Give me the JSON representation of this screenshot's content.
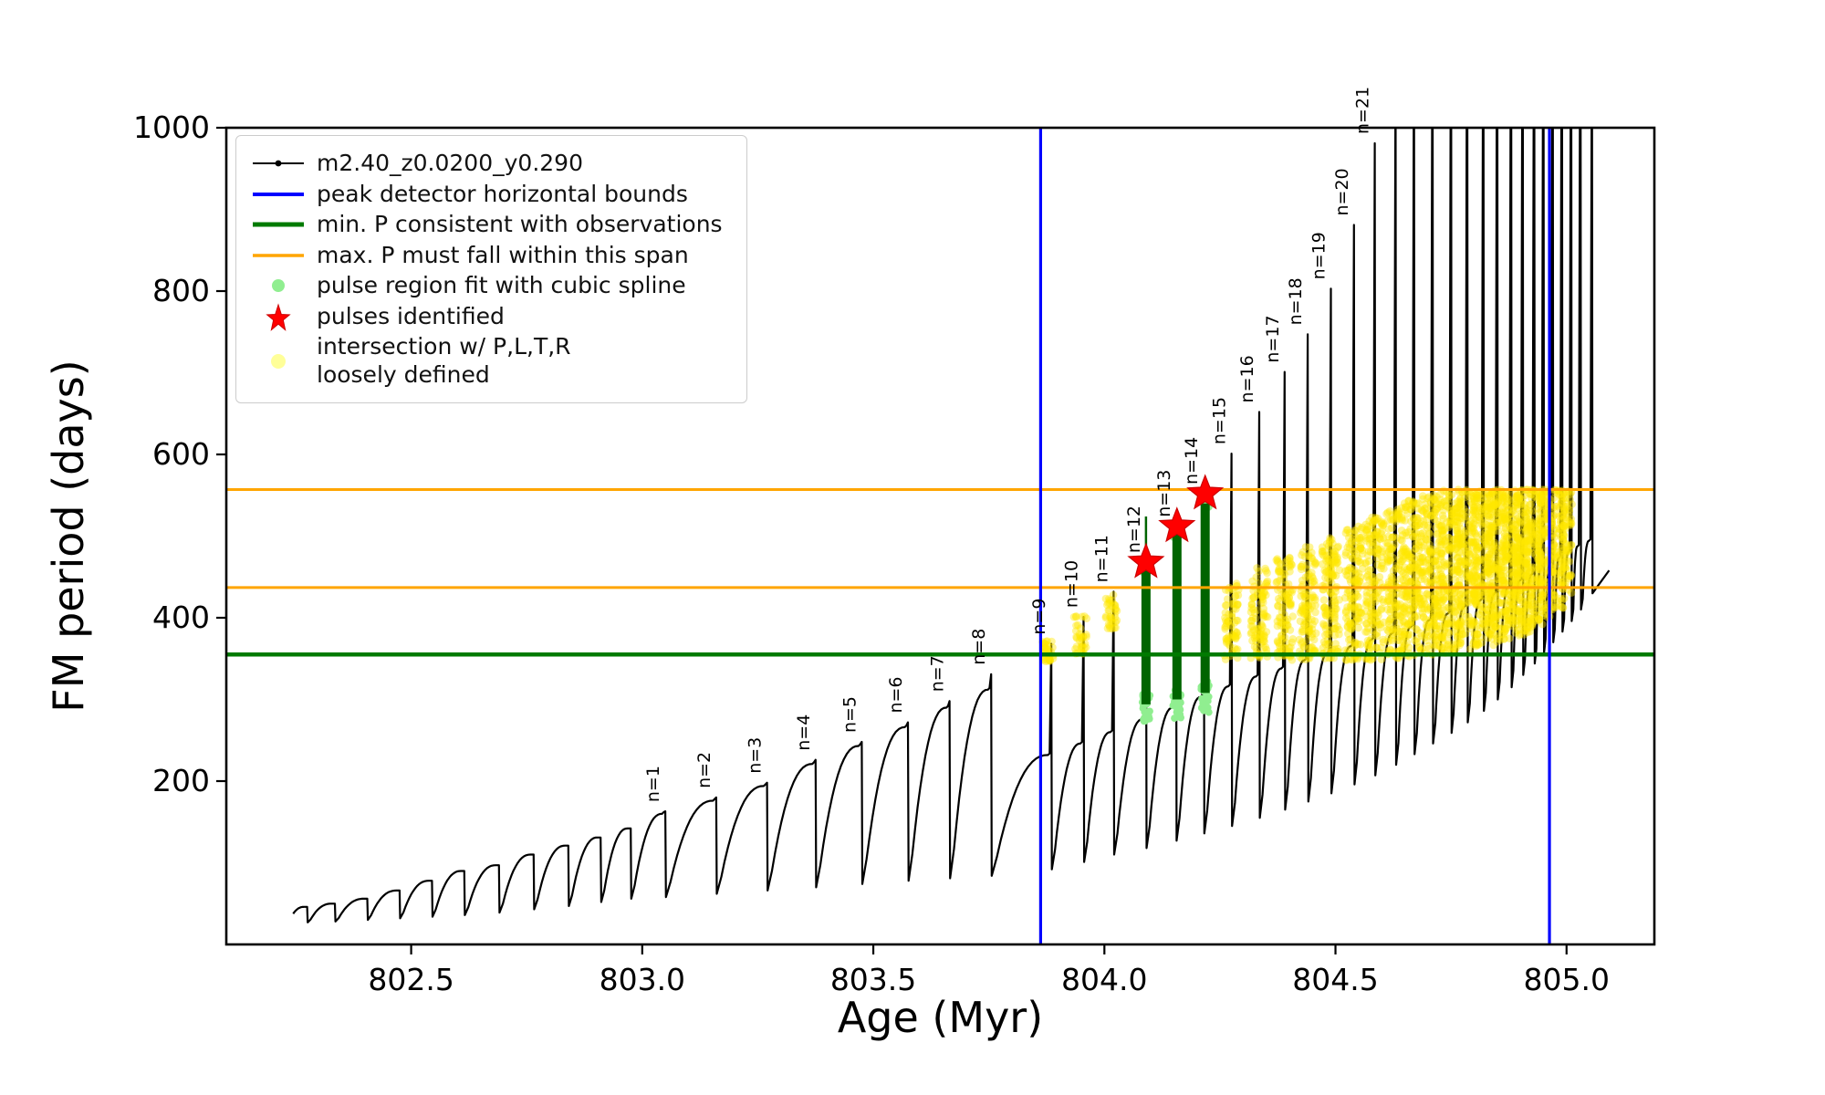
{
  "legend": {
    "items": [
      {
        "label": "m2.40_z0.0200_y0.290"
      },
      {
        "label": "peak detector horizontal bounds"
      },
      {
        "label": "min. P consistent with observations"
      },
      {
        "label": "max. P must fall within this span"
      },
      {
        "label": "pulse region fit with cubic spline"
      },
      {
        "label": "pulses identified"
      },
      {
        "label": "intersection w/ P,L,T,R\nloosely defined"
      }
    ]
  },
  "chart_data": {
    "type": "line",
    "title": "",
    "xlabel": "Age (Myr)",
    "ylabel": "FM period (days)",
    "xlim": [
      802.1,
      805.19
    ],
    "ylim": [
      0,
      1000
    ],
    "xticks": [
      802.5,
      803.0,
      803.5,
      804.0,
      804.5,
      805.0
    ],
    "xtick_labels": [
      "802.5",
      "803.0",
      "803.5",
      "804.0",
      "804.5",
      "805.0"
    ],
    "yticks": [
      200,
      400,
      600,
      800,
      1000
    ],
    "ytick_labels": [
      "200",
      "400",
      "600",
      "800",
      "1000"
    ],
    "series": [
      {
        "name": "m2.40_z0.0200_y0.290",
        "color": "#000000"
      }
    ],
    "pulses": [
      {
        "label": null,
        "age": 802.275,
        "base": 46,
        "peak": 46,
        "dip": 27
      },
      {
        "label": null,
        "age": 802.335,
        "base": 50,
        "peak": 50,
        "dip": 28
      },
      {
        "label": null,
        "age": 802.405,
        "base": 56,
        "peak": 56,
        "dip": 30
      },
      {
        "label": null,
        "age": 802.475,
        "base": 66,
        "peak": 66,
        "dip": 32
      },
      {
        "label": null,
        "age": 802.545,
        "base": 78,
        "peak": 78,
        "dip": 34
      },
      {
        "label": null,
        "age": 802.615,
        "base": 90,
        "peak": 90,
        "dip": 36
      },
      {
        "label": null,
        "age": 802.69,
        "base": 97,
        "peak": 97,
        "dip": 39
      },
      {
        "label": null,
        "age": 802.765,
        "base": 110,
        "peak": 110,
        "dip": 43
      },
      {
        "label": null,
        "age": 802.84,
        "base": 121,
        "peak": 121,
        "dip": 47
      },
      {
        "label": null,
        "age": 802.91,
        "base": 131,
        "peak": 131,
        "dip": 52
      },
      {
        "label": null,
        "age": 802.975,
        "base": 142,
        "peak": 142,
        "dip": 56
      },
      {
        "label": "n=1",
        "age": 803.05,
        "base": 160,
        "peak": 163,
        "dip": 58
      },
      {
        "label": "n=2",
        "age": 803.16,
        "base": 176,
        "peak": 180,
        "dip": 62
      },
      {
        "label": "n=3",
        "age": 803.27,
        "base": 194,
        "peak": 198,
        "dip": 66
      },
      {
        "label": "n=4",
        "age": 803.375,
        "base": 221,
        "peak": 226,
        "dip": 70
      },
      {
        "label": "n=5",
        "age": 803.475,
        "base": 243,
        "peak": 248,
        "dip": 74
      },
      {
        "label": "n=6",
        "age": 803.575,
        "base": 266,
        "peak": 272,
        "dip": 78
      },
      {
        "label": "n=7",
        "age": 803.665,
        "base": 290,
        "peak": 298,
        "dip": 81
      },
      {
        "label": "n=8",
        "age": 803.755,
        "base": 312,
        "peak": 331,
        "dip": 84
      },
      {
        "label": "n=9",
        "age": 803.885,
        "base": 232,
        "peak": 368,
        "dip": 92
      },
      {
        "label": "n=10",
        "age": 803.955,
        "base": 246,
        "peak": 401,
        "dip": 101
      },
      {
        "label": "n=11",
        "age": 804.02,
        "base": 260,
        "peak": 432,
        "dip": 110
      },
      {
        "label": "n=12",
        "age": 804.09,
        "base": 276,
        "peak": 468,
        "dip": 118
      },
      {
        "label": "n=13",
        "age": 804.155,
        "base": 290,
        "peak": 512,
        "dip": 127
      },
      {
        "label": "n=14",
        "age": 804.215,
        "base": 303,
        "peak": 552,
        "dip": 136
      },
      {
        "label": "n=15",
        "age": 804.275,
        "base": 316,
        "peak": 601,
        "dip": 145
      },
      {
        "label": "n=16",
        "age": 804.335,
        "base": 328,
        "peak": 652,
        "dip": 155
      },
      {
        "label": "n=17",
        "age": 804.39,
        "base": 338,
        "peak": 701,
        "dip": 165
      },
      {
        "label": "n=18",
        "age": 804.44,
        "base": 348,
        "peak": 747,
        "dip": 175
      },
      {
        "label": "n=19",
        "age": 804.49,
        "base": 357,
        "peak": 803,
        "dip": 185
      },
      {
        "label": "n=20",
        "age": 804.54,
        "base": 365,
        "peak": 881,
        "dip": 196
      },
      {
        "label": "n=21",
        "age": 804.585,
        "base": 373,
        "peak": 981,
        "dip": 207
      },
      {
        "label": null,
        "age": 804.63,
        "base": 381,
        "peak": 1090,
        "dip": 220
      },
      {
        "label": null,
        "age": 804.67,
        "base": 389,
        "peak": 1160,
        "dip": 233
      },
      {
        "label": null,
        "age": 804.71,
        "base": 397,
        "peak": 1220,
        "dip": 246
      },
      {
        "label": null,
        "age": 804.75,
        "base": 405,
        "peak": 1270,
        "dip": 259
      },
      {
        "label": null,
        "age": 804.785,
        "base": 413,
        "peak": 1300,
        "dip": 272
      },
      {
        "label": null,
        "age": 804.82,
        "base": 421,
        "peak": 1300,
        "dip": 286
      },
      {
        "label": null,
        "age": 804.85,
        "base": 429,
        "peak": 1300,
        "dip": 300
      },
      {
        "label": null,
        "age": 804.88,
        "base": 437,
        "peak": 1300,
        "dip": 315
      },
      {
        "label": null,
        "age": 804.905,
        "base": 445,
        "peak": 1300,
        "dip": 330
      },
      {
        "label": null,
        "age": 804.93,
        "base": 452,
        "peak": 1300,
        "dip": 344
      },
      {
        "label": null,
        "age": 804.95,
        "base": 459,
        "peak": 1300,
        "dip": 357
      },
      {
        "label": null,
        "age": 804.97,
        "base": 466,
        "peak": 1300,
        "dip": 370
      },
      {
        "label": null,
        "age": 804.99,
        "base": 473,
        "peak": 1300,
        "dip": 383
      },
      {
        "label": null,
        "age": 805.01,
        "base": 480,
        "peak": 1300,
        "dip": 396
      },
      {
        "label": null,
        "age": 805.03,
        "base": 487,
        "peak": 1300,
        "dip": 410
      },
      {
        "label": null,
        "age": 805.055,
        "base": 494,
        "peak": 1150,
        "dip": 430
      }
    ],
    "peak_detector_bounds": {
      "x": [
        803.862,
        804.963
      ],
      "color": "#0000ff"
    },
    "min_P_line": {
      "y": 355,
      "color": "#007a00"
    },
    "max_P_span": {
      "y": [
        437,
        557
      ],
      "color": "#ffa500"
    },
    "pulses_identified": {
      "points": [
        [
          804.09,
          468
        ],
        [
          804.157,
          512
        ],
        [
          804.218,
          552
        ]
      ],
      "color": "#ff0000"
    },
    "spline_segments": [
      {
        "x": 804.09,
        "y0": 294,
        "y1": 462,
        "tip": 524
      },
      {
        "x": 804.157,
        "y0": 300,
        "y1": 504,
        "tip": null
      },
      {
        "x": 804.218,
        "y0": 308,
        "y1": 540,
        "tip": null
      }
    ],
    "spline_colors": {
      "dark": "#006400",
      "light": "#90ee90"
    },
    "intersection_color": "#ffe600",
    "intersection_clusters": [
      {
        "x": 803.878,
        "hw": 0.012,
        "y0": 346,
        "y1": 372
      },
      {
        "x": 803.948,
        "hw": 0.014,
        "y0": 356,
        "y1": 402
      },
      {
        "x": 804.015,
        "hw": 0.014,
        "y0": 386,
        "y1": 436
      },
      {
        "x": 804.275,
        "hw": 0.016,
        "y0": 348,
        "y1": 442
      },
      {
        "x": 804.335,
        "hw": 0.018,
        "y0": 348,
        "y1": 462
      },
      {
        "x": 804.39,
        "hw": 0.018,
        "y0": 348,
        "y1": 475
      },
      {
        "x": 804.44,
        "hw": 0.018,
        "y0": 348,
        "y1": 487
      },
      {
        "x": 804.49,
        "hw": 0.019,
        "y0": 348,
        "y1": 500
      },
      {
        "x": 804.54,
        "hw": 0.019,
        "y0": 348,
        "y1": 512
      },
      {
        "x": 804.585,
        "hw": 0.02,
        "y0": 348,
        "y1": 524
      },
      {
        "x": 804.63,
        "hw": 0.02,
        "y0": 350,
        "y1": 535
      },
      {
        "x": 804.67,
        "hw": 0.021,
        "y0": 352,
        "y1": 545
      },
      {
        "x": 804.71,
        "hw": 0.021,
        "y0": 354,
        "y1": 552
      },
      {
        "x": 804.75,
        "hw": 0.022,
        "y0": 356,
        "y1": 557
      },
      {
        "x": 804.785,
        "hw": 0.022,
        "y0": 360,
        "y1": 557
      },
      {
        "x": 804.82,
        "hw": 0.022,
        "y0": 364,
        "y1": 557
      },
      {
        "x": 804.85,
        "hw": 0.022,
        "y0": 368,
        "y1": 557
      },
      {
        "x": 804.88,
        "hw": 0.022,
        "y0": 372,
        "y1": 557
      },
      {
        "x": 804.905,
        "hw": 0.021,
        "y0": 378,
        "y1": 557
      },
      {
        "x": 804.93,
        "hw": 0.02,
        "y0": 386,
        "y1": 557
      },
      {
        "x": 804.955,
        "hw": 0.018,
        "y0": 396,
        "y1": 557
      },
      {
        "x": 804.98,
        "hw": 0.016,
        "y0": 410,
        "y1": 557
      },
      {
        "x": 805.0,
        "hw": 0.012,
        "y0": 430,
        "y1": 555
      }
    ]
  }
}
